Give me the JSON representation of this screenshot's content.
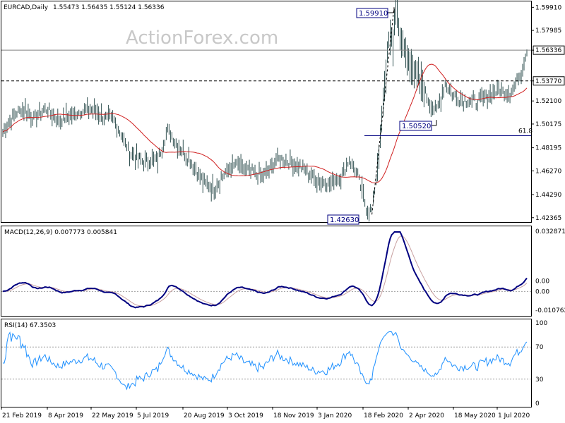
{
  "header": {
    "symbol": "EURCAD,Daily",
    "ohlc": "1.55473 1.56435 1.55124 1.56336"
  },
  "watermark": "ActionForex.com",
  "price_axis_labels": [
    "1.59910",
    "1.57985",
    "1.56336",
    "1.53770",
    "1.52100",
    "1.50175",
    "1.48195",
    "1.46270",
    "1.44290",
    "1.42365"
  ],
  "price_labels": {
    "high": "1.59910",
    "low": "1.42630",
    "mid": "1.50520",
    "fib": "61.8",
    "current": "1.56336",
    "dashed": "1.53770"
  },
  "macd": {
    "title": "MACD(12,26,9) 0.007773 0.005841",
    "axis_labels": [
      "0.032871",
      "0.00",
      "-0.010762"
    ]
  },
  "rsi": {
    "title": "RSI(14) 67.3503",
    "axis_labels": [
      "100",
      "70",
      "30",
      "0"
    ]
  },
  "x_labels": [
    "21 Feb 2019",
    "8 Apr 2019",
    "22 May 2019",
    "5 Jul 2019",
    "20 Aug 2019",
    "3 Oct 2019",
    "18 Nov 2019",
    "3 Jan 2020",
    "18 Feb 2020",
    "2 Apr 2020",
    "18 May 2020",
    "1 Jul 2020"
  ],
  "colors": {
    "bars": "#2f4f4f",
    "ma": "#d02020",
    "macd_line": "#000080",
    "signal_line": "#c8a0a0",
    "rsi_line": "#1e90ff",
    "level_line": "#808080"
  },
  "chart_data": {
    "type": "line",
    "series": [
      {
        "name": "EURCAD",
        "x_labels": [
          "21 Feb 2019",
          "8 Apr 2019",
          "22 May 2019",
          "5 Jul 2019",
          "20 Aug 2019",
          "3 Oct 2019",
          "18 Nov 2019",
          "3 Jan 2020",
          "18 Feb 2020",
          "2 Apr 2020",
          "18 May 2020",
          "1 Jul 2020"
        ],
        "close": [
          1.505,
          1.513,
          1.508,
          1.473,
          1.475,
          1.463,
          1.468,
          1.452,
          1.434,
          1.555,
          1.525,
          1.545
        ]
      }
    ],
    "levels": {
      "high": 1.5991,
      "low": 1.4263,
      "swing_low": 1.5052,
      "current": 1.56336,
      "dashed": 1.5377,
      "fib_61_8": 1.492
    },
    "ylim": [
      1.42,
      1.604
    ],
    "macd_ylim": [
      -0.010762,
      0.032871
    ],
    "rsi_ylim": [
      0,
      100
    ],
    "rsi_levels": [
      70,
      30
    ]
  }
}
